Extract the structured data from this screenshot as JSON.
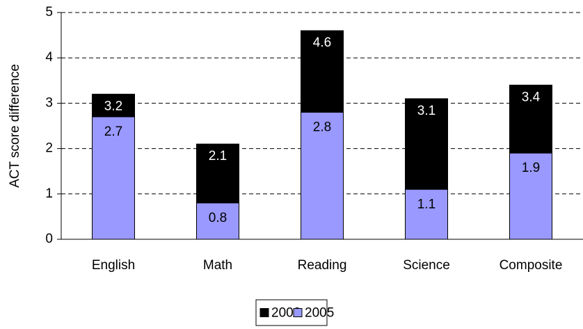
{
  "chart_data": {
    "type": "bar",
    "mode": "overlap",
    "ylabel": "ACT score difference",
    "categories": [
      "English",
      "Math",
      "Reading",
      "Science",
      "Composite"
    ],
    "series": [
      {
        "name": "2002",
        "color": "#000000",
        "values": [
          3.2,
          2.1,
          4.6,
          3.1,
          3.4
        ]
      },
      {
        "name": "2005",
        "color": "#9999ff",
        "values": [
          2.7,
          0.8,
          2.8,
          1.1,
          1.9
        ]
      }
    ],
    "ylim": [
      0,
      5
    ],
    "yticks": [
      0,
      1,
      2,
      3,
      4,
      5
    ],
    "grid": true,
    "legend": "bottom"
  }
}
